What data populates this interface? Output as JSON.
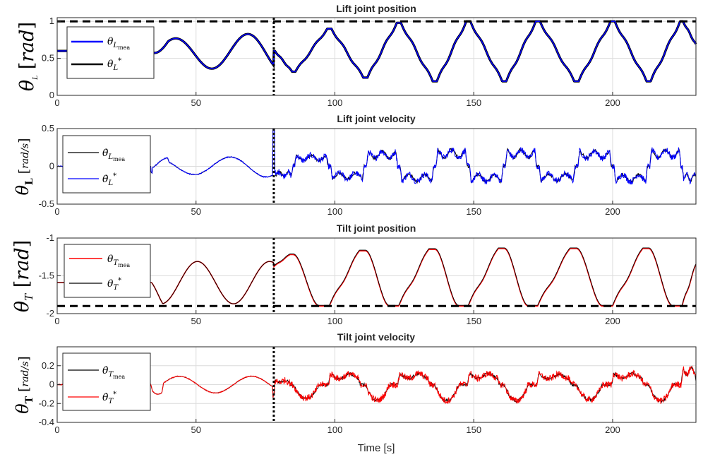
{
  "chart_data": [
    {
      "type": "line",
      "id": "lift-pos",
      "title": "Lift joint position",
      "ylabel": "θL [rad]",
      "xlim": [
        0,
        230
      ],
      "ylim": [
        0,
        1.05
      ],
      "xticks": [
        "0",
        "50",
        "100",
        "150",
        "200"
      ],
      "yticks": [
        "0",
        "0.5",
        "1"
      ],
      "ytick_values": [
        0,
        0.5,
        1
      ],
      "legend": [
        "θL_mea",
        "θL*"
      ],
      "limit_line": 1.0,
      "switch_time": 78,
      "series": [
        {
          "name": "θL_mea",
          "color": "#0000ff"
        },
        {
          "name": "θL*",
          "color": "#000000"
        }
      ]
    },
    {
      "type": "line",
      "id": "lift-vel",
      "title": "Lift joint velocity",
      "ylabel": "θ̇L [rad/s]",
      "xlim": [
        0,
        230
      ],
      "ylim": [
        -0.5,
        0.5
      ],
      "xticks": [
        "0",
        "50",
        "100",
        "150",
        "200"
      ],
      "yticks": [
        "-0.5",
        "0",
        "0.5"
      ],
      "ytick_values": [
        -0.5,
        0,
        0.5
      ],
      "legend": [
        "θ̇L_mea",
        "θ̇L*"
      ],
      "switch_time": 78,
      "series": [
        {
          "name": "θ̇L_mea",
          "color": "#000000"
        },
        {
          "name": "θ̇L*",
          "color": "#0000ff"
        }
      ]
    },
    {
      "type": "line",
      "id": "tilt-pos",
      "title": "Tilt joint position",
      "ylabel": "θT [rad]",
      "xlim": [
        0,
        230
      ],
      "ylim": [
        -2,
        -1
      ],
      "xticks": [
        "0",
        "50",
        "100",
        "150",
        "200"
      ],
      "yticks": [
        "-2",
        "-1.5",
        "-1"
      ],
      "ytick_values": [
        -2,
        -1.5,
        -1
      ],
      "legend": [
        "θT_mea",
        "θT*"
      ],
      "limit_line": -1.9,
      "switch_time": 78,
      "series": [
        {
          "name": "θT_mea",
          "color": "#ff0000"
        },
        {
          "name": "θT*",
          "color": "#000000"
        }
      ]
    },
    {
      "type": "line",
      "id": "tilt-vel",
      "title": "Tilt joint velocity",
      "ylabel": "θ̇T [rad/s]",
      "xlabel": "Time [s]",
      "xlim": [
        0,
        230
      ],
      "ylim": [
        -0.4,
        0.4
      ],
      "xticks": [
        "0",
        "50",
        "100",
        "150",
        "200"
      ],
      "yticks": [
        "-0.4",
        "-0.2",
        "0",
        "0.2"
      ],
      "ytick_values": [
        -0.4,
        -0.2,
        0,
        0.2
      ],
      "legend": [
        "θ̇T_mea",
        "θ̇T*"
      ],
      "switch_time": 78,
      "series": [
        {
          "name": "θ̇T_mea",
          "color": "#000000"
        },
        {
          "name": "θ̇T*",
          "color": "#ff0000"
        }
      ]
    }
  ],
  "text": {
    "t1": "Lift joint position",
    "t2": "Lift joint velocity",
    "t3": "Tilt joint position",
    "t4": "Tilt joint velocity",
    "xlabel": "Time [s]"
  }
}
